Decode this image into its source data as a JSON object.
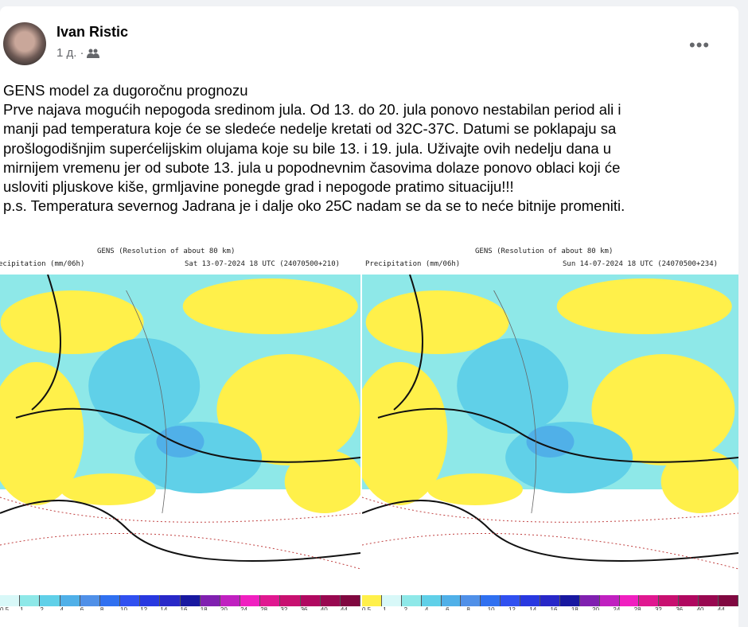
{
  "post": {
    "author": "Ivan Ristic",
    "time": "1 д.",
    "separator": "·",
    "audience_icon": "friends-icon",
    "more_label": "•••",
    "lines": [
      "GENS model za dugoročnu prognozu",
      "Prve najava mogućih nepogoda sredinom jula. Od 13. do 20. jula ponovo nestabilan period ali i",
      "manji pad temperatura koje će se sledeće nedelje kretati od 32C-37C. Datumi se poklapaju sa",
      "prošlogodišnjim superćelijskim olujama koje su bile 13. i 19. jula. Uživajte ovih nedelju dana u",
      "mirnijem vremenu jer od subote 13. jula u popodnevnim časovima dolaze ponovo oblaci koji će",
      "usloviti pljuskove kiše, grmljavine ponegde grad i nepogode pratimo situaciju!!!",
      "p.s. Temperatura severnog Jadrana je i dalje oko 25C nadam se da se to neće bitnije promeniti."
    ]
  },
  "maps": [
    {
      "title": "GENS (Resolution of about 80 km)",
      "variable": "ecipitation (mm/06h)",
      "valid": "Sat 13-07-2024 18 UTC (24070500+210)"
    },
    {
      "title": "GENS (Resolution of about 80 km)",
      "variable": "Precipitation (mm/06h)",
      "valid": "Sun 14-07-2024 18 UTC (24070500+234)"
    }
  ],
  "legend": {
    "colors": [
      "#fff04a",
      "#d8f8f8",
      "#8ee8e8",
      "#60d0e8",
      "#50b0e8",
      "#5090e8",
      "#3070f0",
      "#3050f0",
      "#2838e0",
      "#2828c8",
      "#1818a0",
      "#8020b0",
      "#c020c0",
      "#f020c0",
      "#e01890",
      "#c81070",
      "#b00860",
      "#980850",
      "#800840"
    ],
    "labels": [
      "0.5",
      "1",
      "2",
      "4",
      "6",
      "8",
      "10",
      "12",
      "14",
      "16",
      "18",
      "20",
      "24",
      "28",
      "32",
      "36",
      "40",
      "44"
    ]
  }
}
